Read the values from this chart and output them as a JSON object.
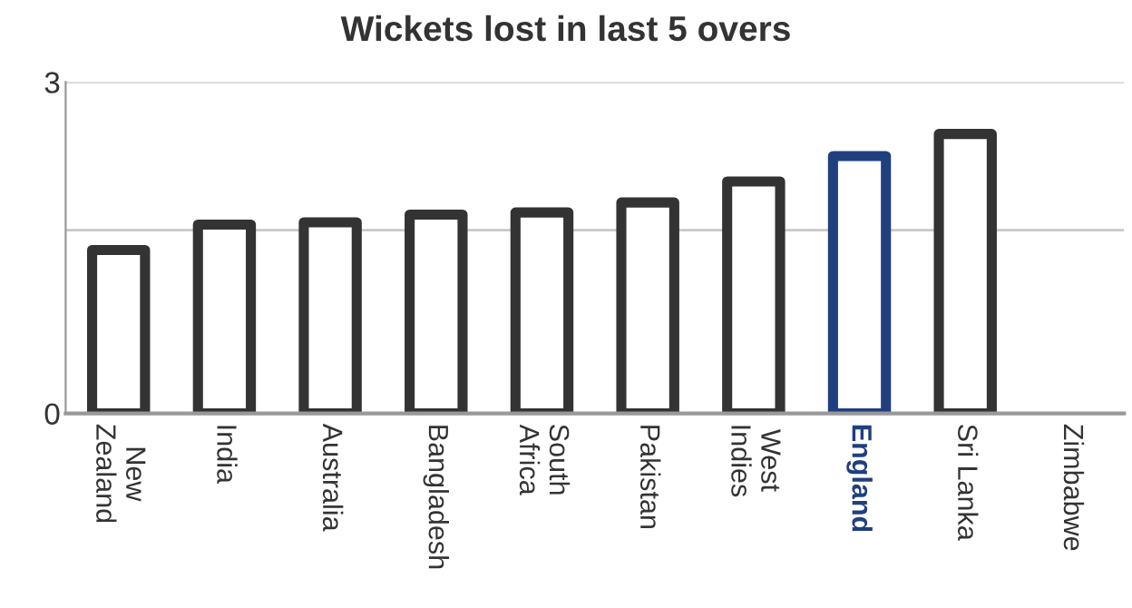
{
  "chart_data": {
    "type": "bar",
    "title": "Wickets lost in last 5 overs",
    "categories": [
      "New\nZealand",
      "India",
      "Australia",
      "Bangladesh",
      "South\nAfrica",
      "Pakistan",
      "West\nIndies",
      "England",
      "Sri Lanka",
      "Zimbabwe"
    ],
    "values": [
      1.48,
      1.71,
      1.73,
      1.8,
      1.82,
      1.91,
      2.1,
      2.33,
      2.53,
      null
    ],
    "colors": [
      "#333333",
      "#333333",
      "#333333",
      "#333333",
      "#333333",
      "#333333",
      "#333333",
      "#1f3f7f",
      "#333333",
      "#333333"
    ],
    "ylim": [
      0,
      3
    ],
    "yticks": [
      0,
      {
        "value": 1.66,
        "label": null
      },
      3
    ],
    "grid": "y"
  }
}
